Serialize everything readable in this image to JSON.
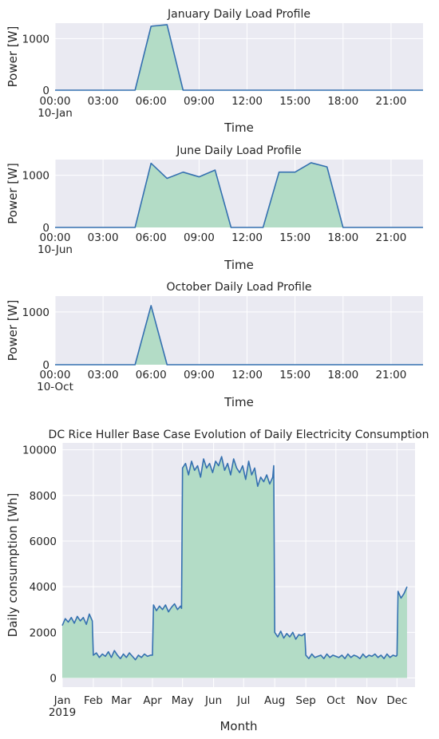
{
  "chart_data": [
    {
      "type": "area",
      "title": "January Daily Load Profile",
      "xlabel": "Time",
      "ylabel": "Power [W]",
      "xlim": [
        0,
        23
      ],
      "ylim": [
        0,
        1300
      ],
      "x_ticks": [
        0,
        3,
        6,
        9,
        12,
        15,
        18,
        21
      ],
      "x_tick_labels": [
        "00:00",
        "03:00",
        "06:00",
        "09:00",
        "12:00",
        "15:00",
        "18:00",
        "21:00"
      ],
      "x_tick_sublabel": "10-Jan",
      "y_ticks": [
        0,
        1000
      ],
      "y_tick_labels": [
        "0",
        "1000"
      ],
      "x": [
        0,
        1,
        2,
        3,
        4,
        5,
        6,
        7,
        8,
        9,
        10,
        11,
        12,
        13,
        14,
        15,
        16,
        17,
        18,
        19,
        20,
        21,
        22,
        23
      ],
      "values": [
        0,
        0,
        0,
        0,
        0,
        0,
        1240,
        1270,
        0,
        0,
        0,
        0,
        0,
        0,
        0,
        0,
        0,
        0,
        0,
        0,
        0,
        0,
        0,
        0
      ]
    },
    {
      "type": "area",
      "title": "June Daily Load Profile",
      "xlabel": "Time",
      "ylabel": "Power [W]",
      "xlim": [
        0,
        23
      ],
      "ylim": [
        0,
        1300
      ],
      "x_ticks": [
        0,
        3,
        6,
        9,
        12,
        15,
        18,
        21
      ],
      "x_tick_labels": [
        "00:00",
        "03:00",
        "06:00",
        "09:00",
        "12:00",
        "15:00",
        "18:00",
        "21:00"
      ],
      "x_tick_sublabel": "10-Jun",
      "y_ticks": [
        0,
        1000
      ],
      "y_tick_labels": [
        "0",
        "1000"
      ],
      "x": [
        0,
        1,
        2,
        3,
        4,
        5,
        6,
        7,
        8,
        9,
        10,
        11,
        12,
        13,
        14,
        15,
        16,
        17,
        18,
        19,
        20,
        21,
        22,
        23
      ],
      "values": [
        0,
        0,
        0,
        0,
        0,
        0,
        1230,
        940,
        1060,
        970,
        1100,
        0,
        0,
        0,
        1060,
        1060,
        1240,
        1160,
        0,
        0,
        0,
        0,
        0,
        0
      ]
    },
    {
      "type": "area",
      "title": "October Daily Load Profile",
      "xlabel": "Time",
      "ylabel": "Power [W]",
      "xlim": [
        0,
        23
      ],
      "ylim": [
        0,
        1300
      ],
      "x_ticks": [
        0,
        3,
        6,
        9,
        12,
        15,
        18,
        21
      ],
      "x_tick_labels": [
        "00:00",
        "03:00",
        "06:00",
        "09:00",
        "12:00",
        "15:00",
        "18:00",
        "21:00"
      ],
      "x_tick_sublabel": "10-Oct",
      "y_ticks": [
        0,
        1000
      ],
      "y_tick_labels": [
        "0",
        "1000"
      ],
      "x": [
        0,
        1,
        2,
        3,
        4,
        5,
        6,
        7,
        8,
        9,
        10,
        11,
        12,
        13,
        14,
        15,
        16,
        17,
        18,
        19,
        20,
        21,
        22,
        23
      ],
      "values": [
        0,
        0,
        0,
        0,
        0,
        0,
        1120,
        0,
        0,
        0,
        0,
        0,
        0,
        0,
        0,
        0,
        0,
        0,
        0,
        0,
        0,
        0,
        0,
        0
      ]
    },
    {
      "type": "area",
      "title": "DC Rice Huller Base Case Evolution of Daily Electricity Consumption",
      "xlabel": "Month",
      "ylabel": "Daily consumption [Wh]",
      "xlim": [
        "2019-01-01",
        "2019-12-19"
      ],
      "ylim": [
        -400,
        10300
      ],
      "x_ticks": [
        "2019-01-01",
        "2019-02-01",
        "2019-03-01",
        "2019-04-01",
        "2019-05-01",
        "2019-06-01",
        "2019-07-01",
        "2019-08-01",
        "2019-09-01",
        "2019-10-01",
        "2019-11-01",
        "2019-12-01"
      ],
      "x_tick_labels": [
        "Jan",
        "Feb",
        "Mar",
        "Apr",
        "May",
        "Jun",
        "Jul",
        "Aug",
        "Sep",
        "Oct",
        "Nov",
        "Dec"
      ],
      "x_tick_sublabel": "2019",
      "y_ticks": [
        0,
        2000,
        4000,
        6000,
        8000,
        10000
      ],
      "y_tick_labels": [
        "0",
        "2000",
        "4000",
        "6000",
        "8000",
        "10000"
      ],
      "x": [
        "2019-01-01",
        "2019-01-04",
        "2019-01-07",
        "2019-01-10",
        "2019-01-13",
        "2019-01-16",
        "2019-01-19",
        "2019-01-22",
        "2019-01-25",
        "2019-01-28",
        "2019-01-31",
        "2019-02-01",
        "2019-02-04",
        "2019-02-07",
        "2019-02-10",
        "2019-02-13",
        "2019-02-16",
        "2019-02-19",
        "2019-02-22",
        "2019-02-25",
        "2019-02-28",
        "2019-03-03",
        "2019-03-06",
        "2019-03-09",
        "2019-03-12",
        "2019-03-15",
        "2019-03-18",
        "2019-03-21",
        "2019-03-24",
        "2019-03-27",
        "2019-03-30",
        "2019-04-01",
        "2019-04-02",
        "2019-04-05",
        "2019-04-08",
        "2019-04-11",
        "2019-04-14",
        "2019-04-17",
        "2019-04-20",
        "2019-04-23",
        "2019-04-26",
        "2019-04-29",
        "2019-04-30",
        "2019-05-01",
        "2019-05-04",
        "2019-05-07",
        "2019-05-10",
        "2019-05-13",
        "2019-05-16",
        "2019-05-19",
        "2019-05-22",
        "2019-05-25",
        "2019-05-28",
        "2019-05-31",
        "2019-06-03",
        "2019-06-06",
        "2019-06-09",
        "2019-06-12",
        "2019-06-15",
        "2019-06-18",
        "2019-06-21",
        "2019-06-24",
        "2019-06-27",
        "2019-06-30",
        "2019-07-03",
        "2019-07-06",
        "2019-07-09",
        "2019-07-12",
        "2019-07-15",
        "2019-07-18",
        "2019-07-21",
        "2019-07-24",
        "2019-07-27",
        "2019-07-30",
        "2019-07-31",
        "2019-08-01",
        "2019-08-04",
        "2019-08-07",
        "2019-08-10",
        "2019-08-13",
        "2019-08-16",
        "2019-08-19",
        "2019-08-22",
        "2019-08-25",
        "2019-08-28",
        "2019-08-31",
        "2019-09-01",
        "2019-09-04",
        "2019-09-07",
        "2019-09-10",
        "2019-09-13",
        "2019-09-16",
        "2019-09-19",
        "2019-09-22",
        "2019-09-25",
        "2019-09-28",
        "2019-10-01",
        "2019-10-04",
        "2019-10-07",
        "2019-10-10",
        "2019-10-13",
        "2019-10-16",
        "2019-10-19",
        "2019-10-22",
        "2019-10-25",
        "2019-10-28",
        "2019-10-31",
        "2019-11-03",
        "2019-11-06",
        "2019-11-09",
        "2019-11-12",
        "2019-11-15",
        "2019-11-18",
        "2019-11-21",
        "2019-11-24",
        "2019-11-27",
        "2019-11-30",
        "2019-12-01",
        "2019-12-02",
        "2019-12-05",
        "2019-12-08",
        "2019-12-11"
      ],
      "values": [
        2300,
        2600,
        2450,
        2650,
        2400,
        2700,
        2500,
        2650,
        2350,
        2800,
        2500,
        1000,
        1100,
        900,
        1050,
        950,
        1150,
        900,
        1200,
        1000,
        850,
        1050,
        900,
        1100,
        950,
        800,
        1000,
        900,
        1050,
        950,
        1000,
        1000,
        3200,
        2950,
        3150,
        3000,
        3200,
        2900,
        3100,
        3250,
        3000,
        3150,
        3050,
        9200,
        9400,
        8900,
        9500,
        9100,
        9300,
        8800,
        9600,
        9200,
        9400,
        9000,
        9500,
        9300,
        9700,
        9100,
        9400,
        8900,
        9600,
        9200,
        9000,
        9300,
        8700,
        9500,
        8900,
        9200,
        8400,
        8800,
        8600,
        8900,
        8500,
        8800,
        9300,
        2000,
        1800,
        2050,
        1750,
        1950,
        1800,
        2000,
        1700,
        1900,
        1850,
        1950,
        1000,
        850,
        1050,
        900,
        950,
        1000,
        850,
        1050,
        900,
        1000,
        950,
        900,
        1000,
        850,
        1050,
        900,
        1000,
        950,
        850,
        1050,
        900,
        1000,
        950,
        1050,
        900,
        1000,
        850,
        1050,
        900,
        1000,
        950,
        1000,
        3800,
        3500,
        3700,
        4000
      ]
    }
  ]
}
